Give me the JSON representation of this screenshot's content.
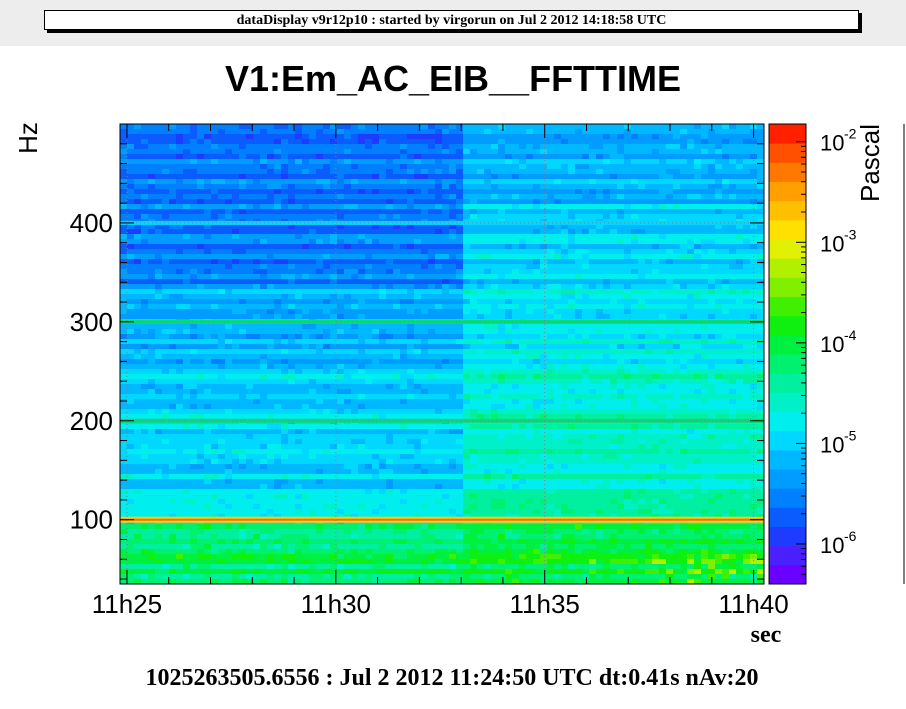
{
  "header": {
    "banner": "dataDisplay v9r12p10 : started by virgorun on Jul  2 2012 14:18:58 UTC"
  },
  "footer": {
    "text": "1025263505.6556 : Jul  2 2012 11:24:50 UTC dt:0.41s nAv:20"
  },
  "chart_data": {
    "type": "heatmap",
    "title": "V1:Em_AC_EIB__FFTTIME",
    "xlabel": "sec",
    "ylabel": "Hz",
    "zlabel": "Pascal",
    "x_ticks": [
      "11h25",
      "11h30",
      "11h35",
      "11h40"
    ],
    "y_ticks": [
      100,
      200,
      300,
      400
    ],
    "xlim": [
      "11h24:50",
      "11h40:15"
    ],
    "ylim": [
      35,
      500
    ],
    "z_scale": "log",
    "zlim": [
      4e-07,
      0.015
    ],
    "z_ticks": [
      {
        "base": "10",
        "exp": "-2"
      },
      {
        "base": "10",
        "exp": "-3"
      },
      {
        "base": "10",
        "exp": "-4"
      },
      {
        "base": "10",
        "exp": "-5"
      },
      {
        "base": "10",
        "exp": "-6"
      }
    ],
    "grid": true,
    "palette": [
      "#6a00ff",
      "#4a20ff",
      "#1e3cff",
      "#0a5cff",
      "#0080ff",
      "#009cff",
      "#00b8ff",
      "#00d8ff",
      "#00eeee",
      "#00f0c8",
      "#00f0a0",
      "#00f070",
      "#00f040",
      "#10f010",
      "#40f000",
      "#80f000",
      "#b0f000",
      "#e0f000",
      "#ffe000",
      "#ffc000",
      "#ffa000",
      "#ff7800",
      "#ff5000",
      "#ff2000"
    ],
    "features": {
      "step_time": "11h33",
      "lines_hz": [
        {
          "hz": 100,
          "level": "~2e-3"
        },
        {
          "hz": 200,
          "level": "~1e-4"
        },
        {
          "hz": 300,
          "level": "~1e-4"
        },
        {
          "hz": 400,
          "level": "~3e-5"
        }
      ],
      "low_freq_band_hz": [
        35,
        95
      ],
      "low_freq_level": "~1e-4"
    }
  }
}
